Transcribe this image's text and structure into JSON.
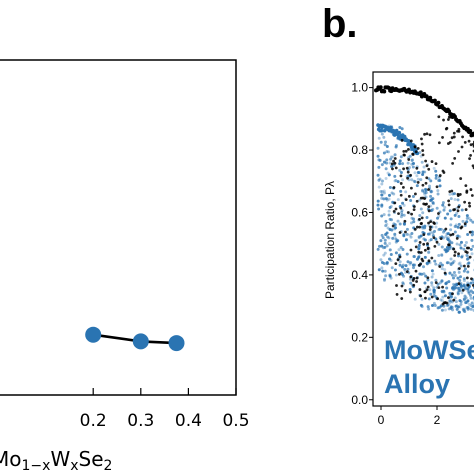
{
  "chart_data": [
    {
      "type": "line",
      "xlabel": "Mo1−xWxSe2",
      "x_ticks": [
        "0.2",
        "0.3",
        "0.4",
        "0.5"
      ],
      "xlim": [
        0.0,
        0.5
      ],
      "ylim": [
        0,
        1
      ],
      "series": [
        {
          "color": "#2a74b2",
          "x": [
            0.2,
            0.3,
            0.375
          ],
          "y": [
            0.18,
            0.16,
            0.155
          ]
        }
      ]
    },
    {
      "type": "scatter",
      "panel_label": "b.",
      "ylabel": "Participation Ratio, Pλ",
      "y_ticks": [
        "1.0",
        "0.8",
        "0.6",
        "0.4",
        "0.2",
        "0.0"
      ],
      "x_ticks": [
        "0",
        "2"
      ],
      "ylim": [
        -0.02,
        1.05
      ],
      "annotation": [
        "MoWSe",
        "Alloy"
      ],
      "series": [
        {
          "color": "#000000"
        },
        {
          "color": "#2a74b2"
        }
      ]
    }
  ]
}
